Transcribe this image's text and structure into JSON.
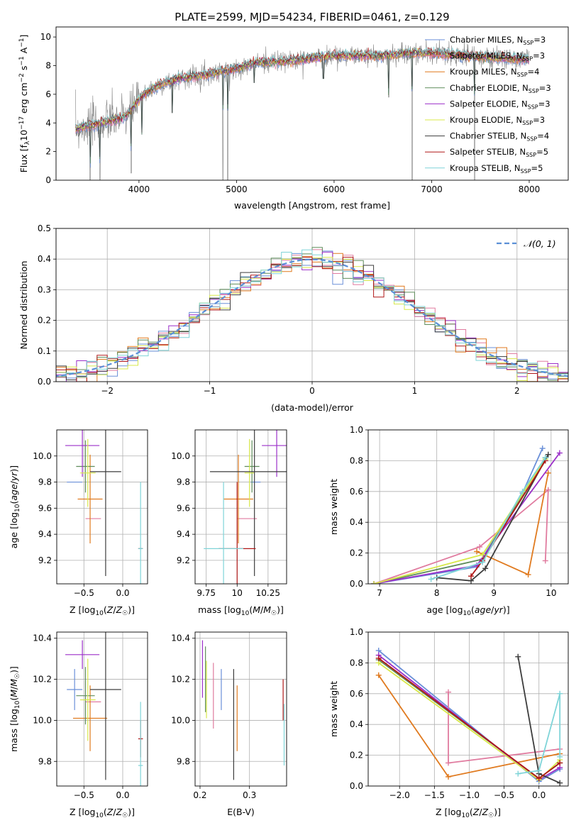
{
  "figure_title": "PLATE=2599, MJD=54234, FIBERID=0461, z=0.129",
  "models": [
    {
      "name": "Chabrier MILES",
      "nssp": "3",
      "color": "#6a8fd8"
    },
    {
      "name": "Salpeter MILES",
      "nssp": "3",
      "color": "#e07b9f"
    },
    {
      "name": "Kroupa MILES",
      "nssp": "4",
      "color": "#e07a1f"
    },
    {
      "name": "Chabrier ELODIE",
      "nssp": "3",
      "color": "#5e8c5a"
    },
    {
      "name": "Salpeter ELODIE",
      "nssp": "3",
      "color": "#9b2fc9"
    },
    {
      "name": "Kroupa ELODIE",
      "nssp": "3",
      "color": "#d8e84a"
    },
    {
      "name": "Chabrier STELIB",
      "nssp": "4",
      "color": "#3d3d3d"
    },
    {
      "name": "Salpeter STELIB",
      "nssp": "5",
      "color": "#b01818"
    },
    {
      "name": "Kroupa STELIB",
      "nssp": "5",
      "color": "#7fd4d8"
    }
  ],
  "chart_data": [
    {
      "id": "spectrum",
      "type": "line",
      "xlabel": "wavelength [Angstrom, rest frame]",
      "ylabel": "Flux [f_λ10^-17 erg cm^-2 s^-1 A^-1]",
      "xlim": [
        3150,
        8400
      ],
      "ylim": [
        0,
        10.7
      ],
      "xticks": [
        4000,
        5000,
        6000,
        7000,
        8000
      ],
      "yticks": [
        0,
        2,
        4,
        6,
        8,
        10
      ],
      "data_color": "#808080",
      "continuum": [
        [
          3350,
          3.6
        ],
        [
          3550,
          3.9
        ],
        [
          3700,
          4.1
        ],
        [
          3850,
          4.4
        ],
        [
          3950,
          5.2
        ],
        [
          4050,
          6.0
        ],
        [
          4200,
          6.6
        ],
        [
          4400,
          7.1
        ],
        [
          4700,
          7.4
        ],
        [
          5000,
          7.8
        ],
        [
          5200,
          8.2
        ],
        [
          5500,
          8.3
        ],
        [
          6000,
          8.7
        ],
        [
          6500,
          8.7
        ],
        [
          6800,
          8.9
        ],
        [
          7200,
          8.8
        ],
        [
          7500,
          8.6
        ],
        [
          8000,
          8.4
        ]
      ],
      "dips": [
        [
          3500,
          0.0
        ],
        [
          3600,
          0.0
        ],
        [
          3920,
          0.5
        ],
        [
          4030,
          3.2
        ],
        [
          4340,
          4.7
        ],
        [
          4860,
          0.0
        ],
        [
          4910,
          0.0
        ],
        [
          5180,
          6.8
        ],
        [
          5890,
          7.1
        ],
        [
          6560,
          5.8
        ],
        [
          6800,
          0.0
        ],
        [
          7440,
          0.0
        ]
      ]
    },
    {
      "id": "residuals",
      "type": "histogram",
      "xlabel": "(data-model)/error",
      "ylabel": "Normed distribution",
      "xlim": [
        -2.5,
        2.5
      ],
      "ylim": [
        0,
        0.5
      ],
      "xticks": [
        -2,
        -1,
        0,
        1,
        2
      ],
      "yticks": [
        0.0,
        0.1,
        0.2,
        0.3,
        0.4,
        0.5
      ],
      "bin_width": 0.1,
      "reference": {
        "label": "N(0,1)",
        "mean": 0,
        "sigma": 1,
        "color": "#5b8fd6"
      }
    },
    {
      "id": "age_vs_Z",
      "type": "errorbar",
      "xlabel": "Z [log10(Z/Z☉)]",
      "ylabel": "age  [log10(age/yr)]",
      "xlim": [
        -0.85,
        0.32
      ],
      "ylim": [
        9.02,
        10.2
      ],
      "xticks": [
        -0.5,
        0.0
      ],
      "yticks": [
        9.2,
        9.4,
        9.6,
        9.8,
        10.0
      ],
      "points": [
        {
          "x": -0.62,
          "xe": 0.1,
          "y": 9.8,
          "ye": 0.0,
          "model": 0
        },
        {
          "x": -0.38,
          "xe": 0.1,
          "y": 9.52,
          "ye": 0.0,
          "model": 1
        },
        {
          "x": -0.42,
          "xe": 0.16,
          "y": 9.67,
          "ye": 0.34,
          "model": 2
        },
        {
          "x": -0.48,
          "xe": 0.12,
          "y": 9.92,
          "ye": 0.2,
          "model": 3
        },
        {
          "x": -0.52,
          "xe": 0.22,
          "y": 10.08,
          "ye": 0.24,
          "model": 4
        },
        {
          "x": -0.45,
          "xe": 0.1,
          "y": 9.87,
          "ye": 0.26,
          "model": 5
        },
        {
          "x": -0.22,
          "xe": 0.2,
          "y": 9.88,
          "ye": 0.8,
          "model": 6
        },
        {
          "x": 0.23,
          "xe": 0.03,
          "y": 9.29,
          "ye": 0.0,
          "model": 7
        },
        {
          "x": 0.23,
          "xe": 0.03,
          "y": 9.29,
          "ye": 0.51,
          "model": 8
        }
      ]
    },
    {
      "id": "age_vs_mass",
      "type": "errorbar",
      "xlabel": "mass [log10(M/M☉)]",
      "ylabel": "",
      "xlim": [
        9.66,
        10.4
      ],
      "ylim": [
        9.02,
        10.2
      ],
      "xticks": [
        9.75,
        10.0,
        10.25
      ],
      "yticks": [
        9.2,
        9.4,
        9.6,
        9.8,
        10.0
      ],
      "points": [
        {
          "x": 10.15,
          "xe": 0.04,
          "y": 9.8,
          "ye": 0.0,
          "model": 0
        },
        {
          "x": 10.08,
          "xe": 0.08,
          "y": 9.52,
          "ye": 0.0,
          "model": 1
        },
        {
          "x": 10.01,
          "xe": 0.12,
          "y": 9.67,
          "ye": 0.34,
          "model": 2
        },
        {
          "x": 10.12,
          "xe": 0.06,
          "y": 9.92,
          "ye": 0.2,
          "model": 3
        },
        {
          "x": 10.32,
          "xe": 0.12,
          "y": 10.08,
          "ye": 0.24,
          "model": 4
        },
        {
          "x": 10.1,
          "xe": 0.04,
          "y": 9.87,
          "ye": 0.26,
          "model": 5
        },
        {
          "x": 10.14,
          "xe": 0.36,
          "y": 9.88,
          "ye": 0.8,
          "model": 6
        },
        {
          "x": 10.0,
          "xe": 0.15,
          "y": 9.29,
          "ye": 0.51,
          "model": 7
        },
        {
          "x": 9.89,
          "xe": 0.16,
          "y": 9.29,
          "ye": 0.51,
          "model": 8
        }
      ]
    },
    {
      "id": "weight_vs_age",
      "type": "line",
      "xlabel": "age  [log10(age/yr)]",
      "ylabel": "mass weight",
      "xlim": [
        6.8,
        10.3
      ],
      "ylim": [
        0,
        1.0
      ],
      "xticks": [
        7,
        8,
        9,
        10
      ],
      "yticks": [
        0.0,
        0.2,
        0.4,
        0.6,
        0.8,
        1.0
      ],
      "series": [
        {
          "model": 0,
          "points": [
            [
              6.9,
              0.0
            ],
            [
              8.7,
              0.11
            ],
            [
              9.5,
              0.59
            ],
            [
              9.85,
              0.88
            ]
          ]
        },
        {
          "model": 1,
          "points": [
            [
              6.9,
              0.0
            ],
            [
              8.75,
              0.24
            ],
            [
              9.95,
              0.61
            ],
            [
              9.9,
              0.15
            ]
          ]
        },
        {
          "model": 2,
          "points": [
            [
              8.7,
              0.21
            ],
            [
              9.6,
              0.06
            ],
            [
              9.95,
              0.72
            ]
          ]
        },
        {
          "model": 3,
          "points": [
            [
              6.9,
              0.0
            ],
            [
              8.8,
              0.16
            ],
            [
              9.9,
              0.82
            ]
          ]
        },
        {
          "model": 4,
          "points": [
            [
              6.9,
              0.0
            ],
            [
              8.7,
              0.12
            ],
            [
              10.15,
              0.85
            ]
          ]
        },
        {
          "model": 5,
          "points": [
            [
              6.9,
              0.0
            ],
            [
              8.8,
              0.19
            ],
            [
              9.9,
              0.81
            ]
          ]
        },
        {
          "model": 6,
          "points": [
            [
              8.0,
              0.04
            ],
            [
              8.6,
              0.02
            ],
            [
              8.85,
              0.1
            ],
            [
              9.95,
              0.84
            ]
          ]
        },
        {
          "model": 7,
          "points": [
            [
              8.6,
              0.05
            ],
            [
              8.8,
              0.15
            ],
            [
              9.9,
              0.8
            ]
          ]
        },
        {
          "model": 8,
          "points": [
            [
              7.9,
              0.03
            ],
            [
              8.8,
              0.14
            ],
            [
              9.5,
              0.6
            ],
            [
              9.9,
              0.82
            ]
          ]
        }
      ]
    },
    {
      "id": "mass_vs_Z",
      "type": "errorbar",
      "xlabel": "Z [log10(Z/Z☉)]",
      "ylabel": "mass [log10(M/M☉)]",
      "xlim": [
        -0.85,
        0.32
      ],
      "ylim": [
        9.68,
        10.43
      ],
      "xticks": [
        -0.5,
        0.0
      ],
      "yticks": [
        9.8,
        10.0,
        10.2,
        10.4
      ],
      "points": [
        {
          "x": -0.62,
          "xe": 0.1,
          "y": 10.15,
          "ye": 0.1,
          "model": 0
        },
        {
          "x": -0.38,
          "xe": 0.1,
          "y": 10.09,
          "ye": 0.0,
          "model": 1
        },
        {
          "x": -0.42,
          "xe": 0.22,
          "y": 10.01,
          "ye": 0.16,
          "model": 2
        },
        {
          "x": -0.48,
          "xe": 0.12,
          "y": 10.12,
          "ye": 0.14,
          "model": 3
        },
        {
          "x": -0.52,
          "xe": 0.22,
          "y": 10.32,
          "ye": 0.07,
          "model": 4
        },
        {
          "x": -0.45,
          "xe": 0.1,
          "y": 10.1,
          "ye": 0.2,
          "model": 5
        },
        {
          "x": -0.22,
          "xe": 0.2,
          "y": 10.15,
          "ye": 0.44,
          "model": 6
        },
        {
          "x": 0.23,
          "xe": 0.03,
          "y": 9.91,
          "ye": 0.09,
          "model": 7
        },
        {
          "x": 0.23,
          "xe": 0.03,
          "y": 9.78,
          "ye": 0.31,
          "model": 8
        }
      ]
    },
    {
      "id": "mass_vs_ebv",
      "type": "errorbar",
      "xlabel": "E(B-V)",
      "ylabel": "",
      "xlim": [
        0.19,
        0.375
      ],
      "ylim": [
        9.68,
        10.43
      ],
      "xticks": [
        0.2,
        0.3
      ],
      "yticks": [
        9.8,
        10.0,
        10.2,
        10.4
      ],
      "points": [
        {
          "x": 0.243,
          "xe": 0.0,
          "y": 10.15,
          "ye": 0.1,
          "model": 0
        },
        {
          "x": 0.227,
          "xe": 0.0,
          "y": 10.12,
          "ye": 0.16,
          "model": 1
        },
        {
          "x": 0.275,
          "xe": 0.0,
          "y": 10.01,
          "ye": 0.16,
          "model": 2
        },
        {
          "x": 0.211,
          "xe": 0.0,
          "y": 10.2,
          "ye": 0.16,
          "model": 3
        },
        {
          "x": 0.205,
          "xe": 0.0,
          "y": 10.25,
          "ye": 0.14,
          "model": 4
        },
        {
          "x": 0.213,
          "xe": 0.0,
          "y": 10.15,
          "ye": 0.14,
          "model": 5
        },
        {
          "x": 0.268,
          "xe": 0.0,
          "y": 9.98,
          "ye": 0.27,
          "model": 6
        },
        {
          "x": 0.368,
          "xe": 0.0,
          "y": 10.1,
          "ye": 0.1,
          "model": 7
        },
        {
          "x": 0.37,
          "xe": 0.0,
          "y": 9.93,
          "ye": 0.15,
          "model": 8
        }
      ]
    },
    {
      "id": "weight_vs_Z",
      "type": "line",
      "xlabel": "Z [log10(Z/Z☉)]",
      "ylabel": "mass weight",
      "xlim": [
        -2.45,
        0.42
      ],
      "ylim": [
        0,
        1.0
      ],
      "xticks": [
        -2.0,
        -1.5,
        -1.0,
        -0.5,
        0.0
      ],
      "yticks": [
        0.0,
        0.2,
        0.4,
        0.6,
        0.8,
        1.0
      ],
      "series": [
        {
          "model": 0,
          "points": [
            [
              -2.3,
              0.88
            ],
            [
              0.0,
              0.03
            ],
            [
              0.3,
              0.11
            ]
          ]
        },
        {
          "model": 1,
          "points": [
            [
              -1.3,
              0.61
            ],
            [
              -1.3,
              0.15
            ],
            [
              0.3,
              0.24
            ]
          ]
        },
        {
          "model": 2,
          "points": [
            [
              -2.3,
              0.72
            ],
            [
              -1.3,
              0.06
            ],
            [
              0.3,
              0.21
            ]
          ]
        },
        {
          "model": 3,
          "points": [
            [
              -2.3,
              0.82
            ],
            [
              0.0,
              0.05
            ],
            [
              0.3,
              0.15
            ]
          ]
        },
        {
          "model": 4,
          "points": [
            [
              -2.3,
              0.85
            ],
            [
              0.0,
              0.04
            ],
            [
              0.3,
              0.12
            ]
          ]
        },
        {
          "model": 5,
          "points": [
            [
              -2.3,
              0.8
            ],
            [
              0.0,
              0.04
            ],
            [
              0.3,
              0.17
            ]
          ]
        },
        {
          "model": 6,
          "points": [
            [
              -0.3,
              0.84
            ],
            [
              0.0,
              0.08
            ],
            [
              0.3,
              0.02
            ]
          ]
        },
        {
          "model": 7,
          "points": [
            [
              -2.3,
              0.83
            ],
            [
              0.0,
              0.05
            ],
            [
              0.3,
              0.15
            ]
          ]
        },
        {
          "model": 8,
          "points": [
            [
              -0.3,
              0.08
            ],
            [
              0.0,
              0.1
            ],
            [
              0.3,
              0.6
            ],
            [
              0.3,
              0.19
            ]
          ]
        }
      ]
    }
  ]
}
